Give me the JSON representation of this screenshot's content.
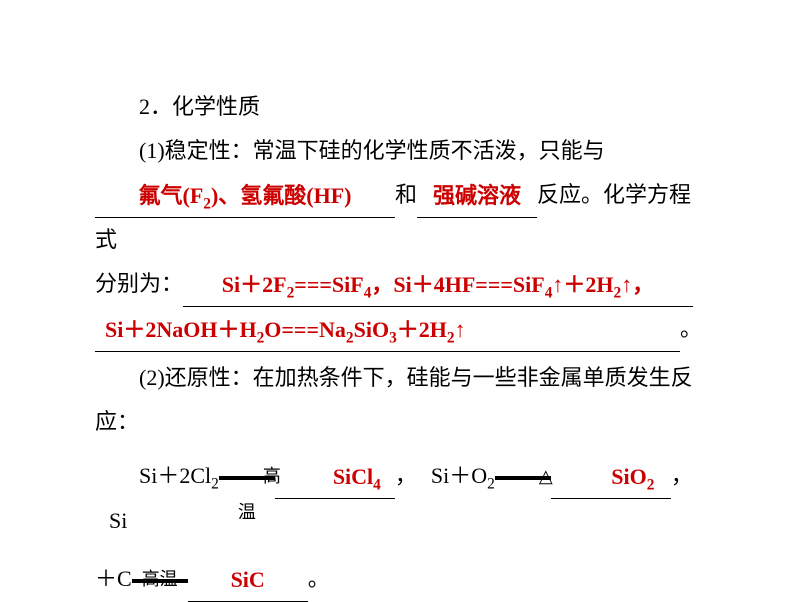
{
  "colors": {
    "answer": "#cc0000",
    "text": "#000000",
    "background": "#ffffff"
  },
  "heading": "2．化学性质",
  "part1": {
    "intro": "(1)稳定性：常温下硅的化学性质不活泼，只能与",
    "blank1": "氟气(F₂)、氢氟酸(HF)",
    "mid1": "和",
    "blank2": "强碱溶液",
    "mid2": "反应。化学方程式",
    "lead2": "分别为：",
    "eq1": "Si＋2F₂===SiF₄，Si＋4HF===SiF₄↑＋2H₂↑，",
    "eq2": "Si＋2NaOH＋H₂O===Na₂SiO₃＋2H₂↑",
    "tail": "。"
  },
  "part2": {
    "intro": "(2)还原性：在加热条件下，硅能与一些非金属单质发生反",
    "intro2": "应：",
    "r1_left": "Si＋2Cl₂",
    "r1_cond": "高温",
    "r1_prod": "SiCl₄",
    "sep1": "，",
    "r2_left": "Si＋O₂",
    "r2_cond": "△",
    "r2_prod": "SiO₂",
    "sep2": "，",
    "r3_left": "Si",
    "r3_left2": "＋C",
    "r3_cond": "高温",
    "r3_prod": "SiC",
    "tail": "。"
  }
}
